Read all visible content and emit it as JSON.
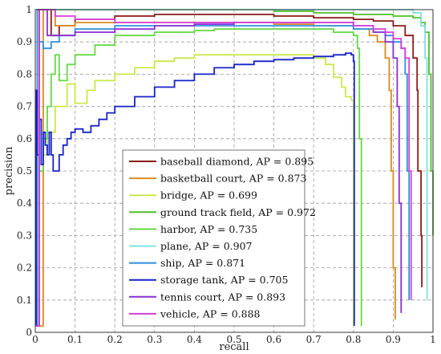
{
  "chart_data": {
    "type": "line",
    "title": "",
    "xlabel": "recall",
    "ylabel": "precision",
    "xlim": [
      0,
      1
    ],
    "ylim": [
      0,
      1
    ],
    "x_ticks": [
      "0",
      "0.1",
      "0.2",
      "0.3",
      "0.4",
      "0.5",
      "0.6",
      "0.7",
      "0.8",
      "0.9",
      "1"
    ],
    "y_ticks": [
      "0",
      "0.1",
      "0.2",
      "0.3",
      "0.4",
      "0.5",
      "0.6",
      "0.7",
      "0.8",
      "0.9",
      "1"
    ],
    "grid": true,
    "legend_position": "lower-left",
    "series": [
      {
        "name": "baseball diamond, AP = 0.895",
        "color": "#8b1a1a",
        "x": [
          0.0,
          0.01,
          0.02,
          0.04,
          0.06,
          0.1,
          0.2,
          0.3,
          0.4,
          0.5,
          0.6,
          0.7,
          0.8,
          0.85,
          0.9,
          0.93,
          0.95,
          0.96,
          0.962,
          0.97,
          0.972
        ],
        "y": [
          0.02,
          1.0,
          1.0,
          0.92,
          0.95,
          0.97,
          0.98,
          0.985,
          0.985,
          0.985,
          0.98,
          0.975,
          0.97,
          0.965,
          0.95,
          0.92,
          0.85,
          0.75,
          0.5,
          0.3,
          0.14
        ]
      },
      {
        "name": "basketball court, AP = 0.873",
        "color": "#d98b1e",
        "x": [
          0.0,
          0.02,
          0.05,
          0.1,
          0.2,
          0.3,
          0.4,
          0.5,
          0.6,
          0.7,
          0.8,
          0.84,
          0.86,
          0.88,
          0.89,
          0.895,
          0.9,
          0.905
        ],
        "y": [
          0.02,
          1.0,
          0.95,
          0.96,
          0.96,
          0.96,
          0.96,
          0.96,
          0.955,
          0.95,
          0.94,
          0.92,
          0.9,
          0.85,
          0.75,
          0.5,
          0.2,
          0.04
        ]
      },
      {
        "name": "bridge, AP = 0.699",
        "color": "#c8e84a",
        "x": [
          0.0,
          0.005,
          0.01,
          0.02,
          0.03,
          0.05,
          0.08,
          0.1,
          0.13,
          0.15,
          0.2,
          0.25,
          0.3,
          0.35,
          0.4,
          0.45,
          0.5,
          0.55,
          0.6,
          0.65,
          0.7,
          0.73,
          0.75,
          0.77,
          0.78,
          0.79,
          0.795,
          0.8
        ],
        "y": [
          0.02,
          1.0,
          0.5,
          0.55,
          0.62,
          0.7,
          0.77,
          0.71,
          0.75,
          0.78,
          0.8,
          0.82,
          0.84,
          0.85,
          0.86,
          0.86,
          0.86,
          0.86,
          0.86,
          0.86,
          0.85,
          0.83,
          0.79,
          0.76,
          0.73,
          0.73,
          0.72,
          0.02
        ]
      },
      {
        "name": "ground track field, AP = 0.972",
        "color": "#4fbf2a",
        "x": [
          0.0,
          0.01,
          0.05,
          0.1,
          0.2,
          0.3,
          0.4,
          0.5,
          0.6,
          0.7,
          0.8,
          0.9,
          0.95,
          0.97,
          0.98,
          0.99,
          0.995,
          1.0
        ],
        "y": [
          0.02,
          1.0,
          1.0,
          1.0,
          1.0,
          1.0,
          1.0,
          1.0,
          0.995,
          0.99,
          0.985,
          0.98,
          0.975,
          0.96,
          0.93,
          0.8,
          0.5,
          0.3
        ]
      },
      {
        "name": "harbor, AP = 0.735",
        "color": "#63d843",
        "x": [
          0.0,
          0.005,
          0.01,
          0.02,
          0.03,
          0.04,
          0.05,
          0.06,
          0.08,
          0.1,
          0.15,
          0.2,
          0.25,
          0.3,
          0.35,
          0.4,
          0.45,
          0.5,
          0.55,
          0.6,
          0.65,
          0.7,
          0.75,
          0.8,
          0.81,
          0.815,
          0.82
        ],
        "y": [
          0.02,
          1.0,
          0.5,
          0.6,
          0.7,
          0.8,
          0.86,
          0.78,
          0.83,
          0.86,
          0.89,
          0.92,
          0.92,
          0.93,
          0.93,
          0.935,
          0.94,
          0.94,
          0.94,
          0.94,
          0.94,
          0.94,
          0.93,
          0.92,
          0.88,
          0.6,
          0.02
        ]
      },
      {
        "name": "plane, AP = 0.907",
        "color": "#7fe1de",
        "x": [
          0.0,
          0.01,
          0.05,
          0.1,
          0.2,
          0.3,
          0.4,
          0.5,
          0.6,
          0.7,
          0.8,
          0.9,
          0.95,
          0.97,
          0.98,
          0.985
        ],
        "y": [
          0.02,
          1.0,
          1.0,
          1.0,
          1.0,
          1.0,
          1.0,
          1.0,
          1.0,
          1.0,
          1.0,
          1.0,
          0.99,
          0.95,
          0.85,
          0.1
        ]
      },
      {
        "name": "ship, AP = 0.871",
        "color": "#2f8ee0",
        "x": [
          0.0,
          0.005,
          0.01,
          0.02,
          0.04,
          0.06,
          0.1,
          0.2,
          0.3,
          0.4,
          0.5,
          0.6,
          0.7,
          0.8,
          0.85,
          0.88,
          0.9,
          0.92,
          0.93,
          0.935,
          0.94
        ],
        "y": [
          0.02,
          1.0,
          0.9,
          0.88,
          0.9,
          0.92,
          0.94,
          0.95,
          0.95,
          0.95,
          0.95,
          0.95,
          0.95,
          0.94,
          0.93,
          0.92,
          0.9,
          0.88,
          0.8,
          0.5,
          0.1
        ]
      },
      {
        "name": "storage tank, AP = 0.705",
        "color": "#1622c8",
        "x": [
          0.0,
          0.002,
          0.005,
          0.01,
          0.015,
          0.02,
          0.025,
          0.03,
          0.035,
          0.04,
          0.045,
          0.05,
          0.06,
          0.07,
          0.08,
          0.09,
          0.1,
          0.12,
          0.14,
          0.16,
          0.18,
          0.2,
          0.25,
          0.3,
          0.35,
          0.4,
          0.45,
          0.5,
          0.55,
          0.6,
          0.65,
          0.7,
          0.75,
          0.78,
          0.795,
          0.8,
          0.802
        ],
        "y": [
          0.02,
          0.75,
          0.55,
          0.66,
          0.52,
          0.62,
          0.58,
          0.55,
          0.62,
          0.55,
          0.5,
          0.5,
          0.55,
          0.58,
          0.6,
          0.62,
          0.63,
          0.62,
          0.64,
          0.66,
          0.68,
          0.7,
          0.73,
          0.76,
          0.78,
          0.8,
          0.82,
          0.83,
          0.84,
          0.845,
          0.85,
          0.855,
          0.86,
          0.865,
          0.86,
          0.84,
          0.02
        ]
      },
      {
        "name": "tennis court, AP = 0.893",
        "color": "#8a2ed6",
        "x": [
          0.0,
          0.01,
          0.02,
          0.03,
          0.05,
          0.1,
          0.2,
          0.3,
          0.4,
          0.5,
          0.6,
          0.7,
          0.8,
          0.85,
          0.88,
          0.9,
          0.91,
          0.915,
          0.92
        ],
        "y": [
          0.02,
          1.0,
          1.0,
          0.92,
          0.92,
          0.93,
          0.94,
          0.95,
          0.955,
          0.96,
          0.96,
          0.96,
          0.95,
          0.93,
          0.9,
          0.85,
          0.7,
          0.4,
          0.06
        ]
      },
      {
        "name": "vehicle, AP = 0.888",
        "color": "#d63fd6",
        "x": [
          0.0,
          0.01,
          0.02,
          0.05,
          0.1,
          0.2,
          0.3,
          0.4,
          0.5,
          0.6,
          0.7,
          0.8,
          0.85,
          0.88,
          0.9,
          0.92,
          0.93,
          0.94,
          0.945
        ],
        "y": [
          0.02,
          1.0,
          1.0,
          0.98,
          0.97,
          0.96,
          0.96,
          0.96,
          0.96,
          0.96,
          0.96,
          0.95,
          0.94,
          0.93,
          0.91,
          0.88,
          0.85,
          0.5,
          0.1
        ]
      }
    ]
  }
}
